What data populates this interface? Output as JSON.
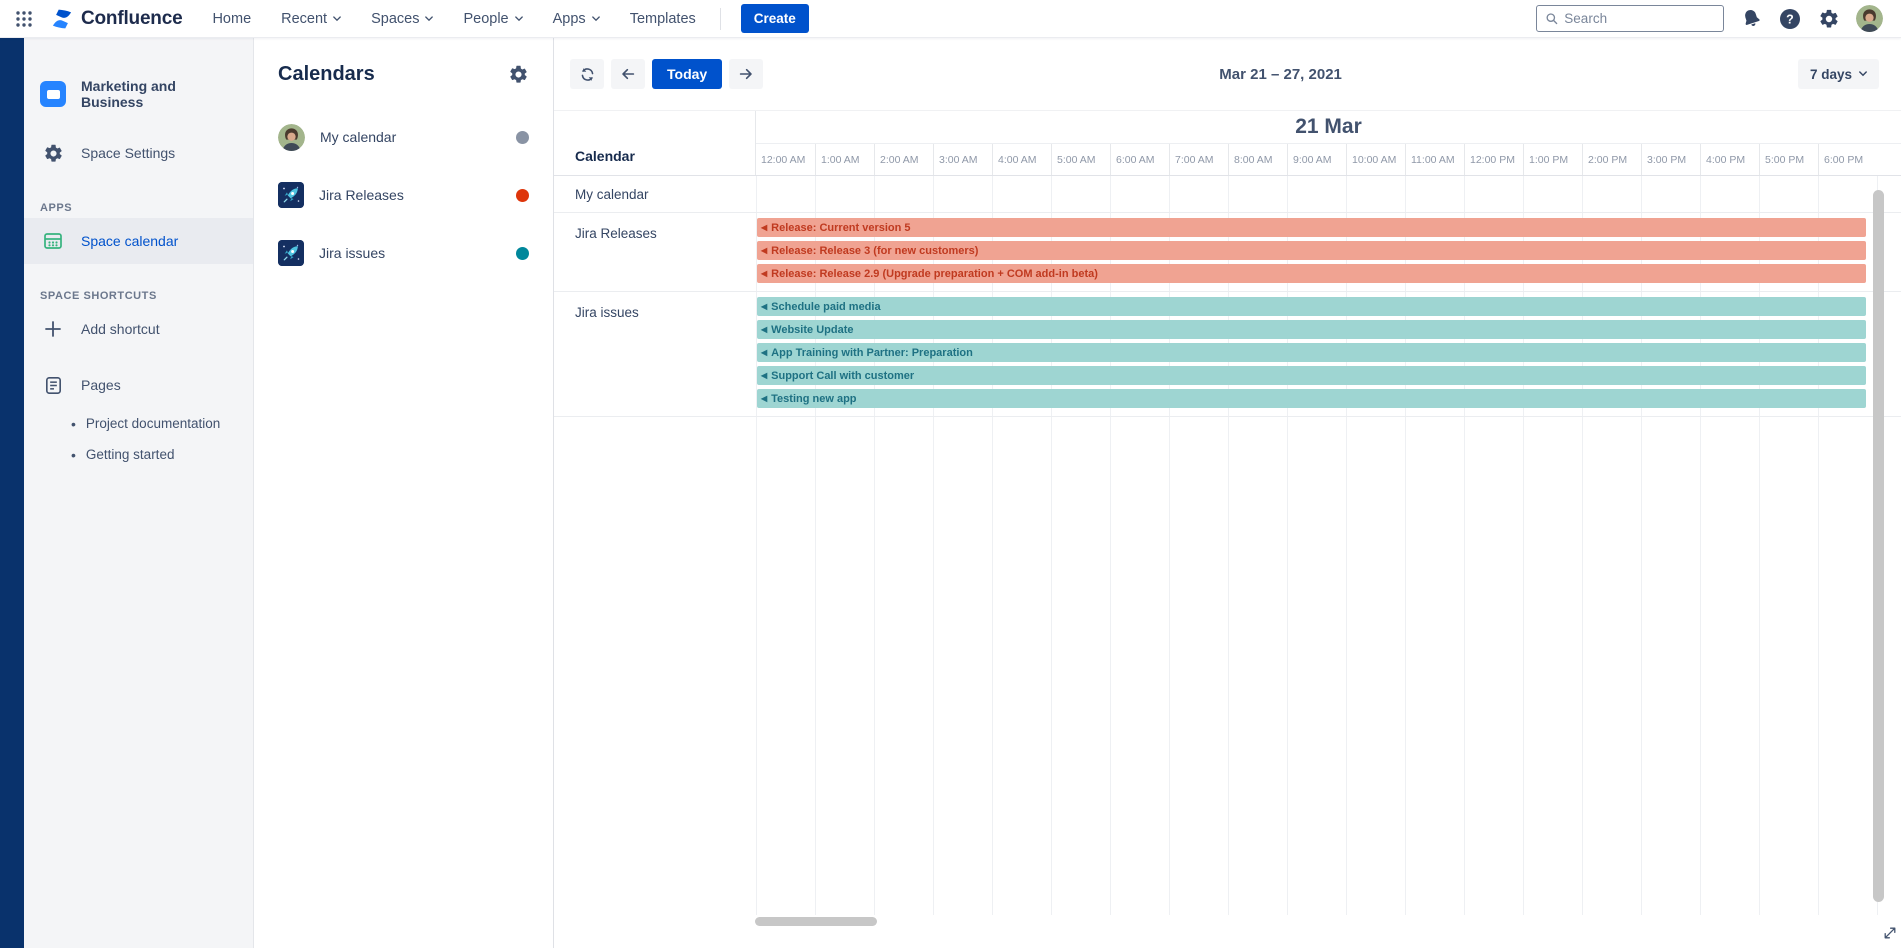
{
  "colors": {
    "accent_blue": "#0052cc",
    "navy_strip": "#09326c",
    "release_event_bg": "#f0a392",
    "release_event_text": "#c03a20",
    "issue_event_bg": "#9ed5d2",
    "issue_event_text": "#1e7183"
  },
  "topnav": {
    "logo_text": "Confluence",
    "items": [
      {
        "label": "Home",
        "dropdown": false
      },
      {
        "label": "Recent",
        "dropdown": true
      },
      {
        "label": "Spaces",
        "dropdown": true
      },
      {
        "label": "People",
        "dropdown": true
      },
      {
        "label": "Apps",
        "dropdown": true
      },
      {
        "label": "Templates",
        "dropdown": false
      }
    ],
    "create_label": "Create",
    "search_placeholder": "Search",
    "icons": [
      "app-switcher-icon",
      "search-icon",
      "notifications-icon",
      "help-icon",
      "settings-icon",
      "user-avatar"
    ]
  },
  "sidebar": {
    "space_name": "Marketing and Business",
    "space_settings_label": "Space Settings",
    "apps_header": "APPS",
    "space_calendar_label": "Space calendar",
    "shortcuts_header": "SPACE SHORTCUTS",
    "add_shortcut_label": "Add shortcut",
    "pages_label": "Pages",
    "page_links": [
      "Project documentation",
      "Getting started"
    ]
  },
  "calendars_panel": {
    "title": "Calendars",
    "items": [
      {
        "name": "My calendar",
        "icon": "avatar",
        "dot_color": "#8993a4"
      },
      {
        "name": "Jira Releases",
        "icon": "rocket",
        "dot_color": "#de350b"
      },
      {
        "name": "Jira issues",
        "icon": "rocket",
        "dot_color": "#00879b"
      }
    ]
  },
  "toolbar": {
    "today_label": "Today",
    "date_range": "Mar 21 – 27, 2021",
    "range_selector_label": "7 days"
  },
  "calendar": {
    "day_header": "21 Mar",
    "column_header": "Calendar",
    "time_labels": [
      "12:00 AM",
      "1:00 AM",
      "2:00 AM",
      "3:00 AM",
      "4:00 AM",
      "5:00 AM",
      "6:00 AM",
      "7:00 AM",
      "8:00 AM",
      "9:00 AM",
      "10:00 AM",
      "11:00 AM",
      "12:00 PM",
      "1:00 PM",
      "2:00 PM",
      "3:00 PM",
      "4:00 PM",
      "5:00 PM",
      "6:00 PM"
    ],
    "rows": [
      {
        "label": "My calendar",
        "style": "none",
        "events": []
      },
      {
        "label": "Jira Releases",
        "style": "release",
        "events": [
          "Release: Current version 5",
          "Release: Release 3 (for new customers)",
          "Release: Release 2.9 (Upgrade preparation + COM add-in beta)"
        ]
      },
      {
        "label": "Jira issues",
        "style": "issue",
        "events": [
          "Schedule paid media",
          "Website Update",
          "App Training with Partner: Preparation",
          "Support Call with customer",
          "Testing new app"
        ]
      }
    ]
  }
}
